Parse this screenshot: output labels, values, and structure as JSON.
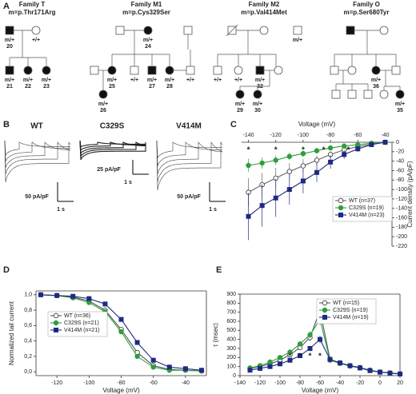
{
  "panel_labels": [
    "A",
    "B",
    "C",
    "D",
    "E"
  ],
  "pedigrees": [
    {
      "title": "Family T",
      "mutation": "m=p.Thr171Arg",
      "individuals": [
        {
          "genotype": "m/+",
          "id": "20"
        },
        {
          "genotype": "+/+"
        },
        {
          "genotype": "m/+",
          "id": "21"
        },
        {
          "genotype": "m/+",
          "id": "22"
        },
        {
          "genotype": "m/+",
          "id": "23"
        }
      ]
    },
    {
      "title": "Family M1",
      "mutation": "m=p.Cys329Ser",
      "individuals": [
        {
          "genotype": "m/+",
          "id": "24"
        },
        {
          "genotype": "m/+",
          "id": "25"
        },
        {
          "genotype": "+/+"
        },
        {
          "genotype": "m/+",
          "id": "27"
        },
        {
          "genotype": "m/+",
          "id": "28"
        },
        {
          "genotype": "+/+"
        },
        {
          "genotype": "m/+",
          "id": "26"
        }
      ]
    },
    {
      "title": "Family M2",
      "mutation": "m=p.Val414Met",
      "individuals": [
        {
          "genotype": "m/+"
        },
        {
          "genotype": "+/+"
        },
        {
          "genotype": "+/+"
        },
        {
          "genotype": "m/+",
          "id": "32"
        },
        {
          "genotype": "m/+",
          "id": "29"
        },
        {
          "genotype": "m/+",
          "id": "30"
        }
      ]
    },
    {
      "title": "Family O",
      "mutation": "m=p.Ser680Tyr",
      "individuals": [
        {
          "genotype": "m/+",
          "id": "36"
        },
        {
          "genotype": "m/+",
          "id": "35"
        }
      ]
    }
  ],
  "traces": [
    {
      "label": "WT",
      "scale_current": "50 pA/pF",
      "scale_time": "1 s"
    },
    {
      "label": "C329S",
      "scale_current": "25 pA/pF",
      "scale_time": "1 s"
    },
    {
      "label": "V414M",
      "scale_current": "50 pA/pF",
      "scale_time": "1 s"
    }
  ],
  "chart_data": [
    {
      "type": "line",
      "x_label": "Voltage (mV)",
      "y_label": "Current density (pA/pF)",
      "x": [
        -140,
        -130,
        -120,
        -110,
        -100,
        -90,
        -80,
        -70,
        -60,
        -50,
        -40
      ],
      "xlim": [
        -145,
        -35
      ],
      "xticks": [
        -140,
        -120,
        -100,
        -80,
        -60,
        -40
      ],
      "ylim": [
        -220,
        0
      ],
      "yticks": [
        0,
        -20,
        -40,
        -60,
        -80,
        -100,
        -120,
        -140,
        -160,
        -180,
        -200,
        -220
      ],
      "legend": "lower right",
      "series": [
        {
          "name": "WT (n=37)",
          "color": "#666666",
          "marker": "circle",
          "marker_fill": "#ffffff",
          "values": [
            -106,
            -90,
            -76,
            -62,
            -50,
            -38,
            -26,
            -16,
            -9,
            -4,
            0
          ],
          "errors": [
            30,
            25,
            22,
            18,
            14,
            10,
            7,
            5,
            3,
            2,
            1
          ]
        },
        {
          "name": "C329S (n=19)",
          "color": "#2e9e3e",
          "marker": "circle",
          "marker_fill": "#2e9e3e",
          "values": [
            -49,
            -44,
            -38,
            -30,
            -24,
            -18,
            -12,
            -8,
            -5,
            -2,
            0
          ],
          "errors": [
            14,
            12,
            10,
            8,
            7,
            6,
            4,
            3,
            2,
            1,
            1
          ]
        },
        {
          "name": "V414M (n=23)",
          "color": "#1f2a80",
          "marker": "square",
          "marker_fill": "#1f2a80",
          "values": [
            -157,
            -134,
            -118,
            -100,
            -82,
            -64,
            -42,
            -26,
            -14,
            -5,
            0
          ],
          "errors": [
            50,
            45,
            40,
            32,
            26,
            20,
            14,
            9,
            6,
            3,
            1
          ]
        }
      ],
      "annotations": [
        {
          "text": "*",
          "x": -140
        },
        {
          "text": "*",
          "x": -120
        },
        {
          "text": "*",
          "x": -100
        },
        {
          "text": "*",
          "x": -85
        },
        {
          "text": "*",
          "x": -67
        }
      ]
    },
    {
      "type": "line",
      "x_label": "Voltage (mV)",
      "y_label": "Normalized tail current",
      "x": [
        -130,
        -120,
        -110,
        -100,
        -90,
        -80,
        -70,
        -60,
        -50,
        -40,
        -30
      ],
      "xlim": [
        -133,
        -27
      ],
      "xticks": [
        -120,
        -100,
        -80,
        -60,
        -40
      ],
      "ylim": [
        -0.05,
        1.05
      ],
      "yticks": [
        {
          "value": 0,
          "label": "0,0"
        },
        {
          "value": 0.2,
          "label": "0,2"
        },
        {
          "value": 0.4,
          "label": "0,4"
        },
        {
          "value": 0.6,
          "label": "0,6"
        },
        {
          "value": 0.8,
          "label": "0,8"
        },
        {
          "value": 1,
          "label": "1,0"
        }
      ],
      "legend": "lower left",
      "series": [
        {
          "name": "WT (n=36)",
          "color": "#555555",
          "marker": "circle",
          "marker_fill": "#ffffff",
          "values": [
            1.0,
            0.99,
            0.97,
            0.92,
            0.8,
            0.55,
            0.25,
            0.08,
            0.03,
            0.02,
            0.01
          ]
        },
        {
          "name": "C329S (n=21)",
          "color": "#2e9e3e",
          "marker": "circle",
          "marker_fill": "#2e9e3e",
          "values": [
            1.0,
            0.99,
            0.96,
            0.9,
            0.78,
            0.52,
            0.2,
            0.06,
            0.02,
            0.02,
            0.01
          ]
        },
        {
          "name": "V414M (n=21)",
          "color": "#1f2a80",
          "marker": "square",
          "marker_fill": "#1f2a80",
          "values": [
            1.0,
            0.99,
            0.98,
            0.95,
            0.88,
            0.68,
            0.38,
            0.15,
            0.06,
            0.04,
            0.02
          ]
        }
      ]
    },
    {
      "type": "line",
      "x_label": "Voltage (mV)",
      "y_label": "τ (msec)",
      "x": [
        -130,
        -120,
        -110,
        -100,
        -90,
        -80,
        -70,
        -60,
        -50,
        -40,
        -30,
        -20,
        -10,
        0,
        10,
        20
      ],
      "xlim": [
        -140,
        20
      ],
      "xticks": [
        -140,
        -120,
        -100,
        -80,
        -60,
        -40,
        -20,
        0,
        20
      ],
      "ylim": [
        0,
        900
      ],
      "yticks": [
        0,
        100,
        200,
        300,
        400,
        500,
        600,
        700,
        800,
        900
      ],
      "legend": "upper right",
      "series": [
        {
          "name": "WT (n=15)",
          "color": "#555555",
          "marker": "circle",
          "marker_fill": "#ffffff",
          "values": [
            80,
            100,
            130,
            170,
            230,
            310,
            420,
            720,
            180,
            140,
            110,
            90,
            60,
            40,
            30,
            20
          ],
          "errors": [
            10,
            10,
            15,
            15,
            20,
            25,
            40,
            80,
            20,
            15,
            10,
            10,
            8,
            6,
            5,
            5
          ]
        },
        {
          "name": "C329S (n=19)",
          "color": "#2e9e3e",
          "marker": "circle",
          "marker_fill": "#2e9e3e",
          "values": [
            85,
            110,
            150,
            200,
            260,
            350,
            450,
            620,
            170,
            135,
            105,
            85,
            60,
            40,
            30,
            20
          ],
          "errors": [
            10,
            10,
            15,
            20,
            20,
            30,
            40,
            60,
            20,
            15,
            10,
            10,
            8,
            6,
            5,
            5
          ]
        },
        {
          "name": "V414M (n=19)",
          "color": "#1f2a80",
          "marker": "square",
          "marker_fill": "#1f2a80",
          "values": [
            60,
            80,
            100,
            130,
            170,
            220,
            300,
            400,
            180,
            140,
            110,
            85,
            55,
            38,
            28,
            18
          ],
          "errors": [
            8,
            8,
            10,
            15,
            15,
            20,
            30,
            40,
            20,
            15,
            10,
            10,
            8,
            6,
            5,
            5
          ]
        }
      ],
      "annotations": [
        {
          "text": "*",
          "x": -90
        },
        {
          "text": "*",
          "x": -80
        },
        {
          "text": "*",
          "x": -70
        },
        {
          "text": "*",
          "x": -60
        }
      ]
    }
  ]
}
